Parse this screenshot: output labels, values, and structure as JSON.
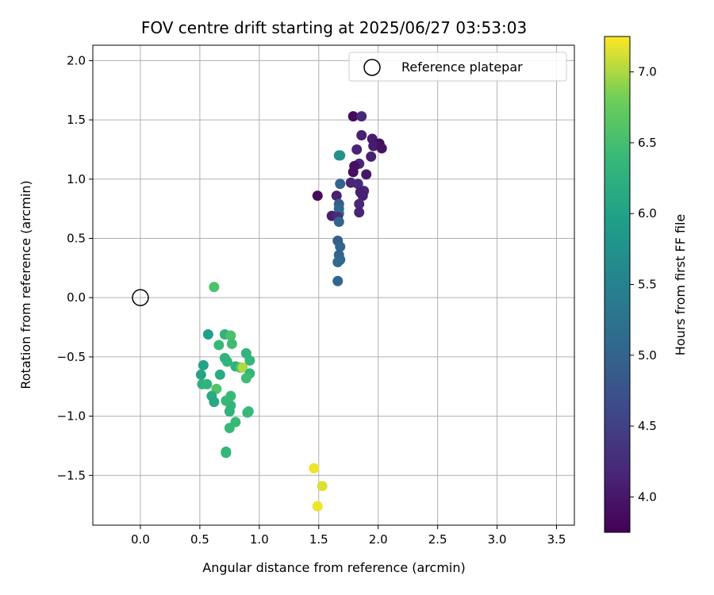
{
  "chart_data": {
    "type": "scatter",
    "title": "FOV centre drift starting at 2025/06/27 03:53:03",
    "xlabel": "Angular distance from reference (arcmin)",
    "ylabel": "Rotation from reference (arcmin)",
    "xlim": [
      -0.4,
      3.65
    ],
    "ylim": [
      -1.92,
      2.13
    ],
    "xticks": [
      0.0,
      0.5,
      1.0,
      1.5,
      2.0,
      2.5,
      3.0,
      3.5
    ],
    "yticks": [
      -1.5,
      -1.0,
      -0.5,
      0.0,
      0.5,
      1.0,
      1.5,
      2.0
    ],
    "xtick_labels": [
      "0.0",
      "0.5",
      "1.0",
      "1.5",
      "2.0",
      "2.5",
      "3.0",
      "3.5"
    ],
    "ytick_labels": [
      "−1.5",
      "−1.0",
      "−0.5",
      "0.0",
      "0.5",
      "1.0",
      "1.5",
      "2.0"
    ],
    "grid": true,
    "legend": {
      "position": "top-right",
      "entries": [
        "Reference platepar"
      ]
    },
    "reference_point": {
      "x": 0.0,
      "y": 0.0
    },
    "colorbar": {
      "label": "Hours from first FF file",
      "colormap": "viridis",
      "range": [
        3.75,
        7.25
      ],
      "ticks": [
        4.0,
        4.5,
        5.0,
        5.5,
        6.0,
        6.5,
        7.0
      ],
      "tick_labels": [
        "4.0",
        "4.5",
        "5.0",
        "5.5",
        "6.0",
        "6.5",
        "7.0"
      ]
    },
    "points": [
      {
        "x": 1.79,
        "y": 1.53,
        "h": 3.85
      },
      {
        "x": 1.86,
        "y": 1.53,
        "h": 4.2
      },
      {
        "x": 1.86,
        "y": 1.37,
        "h": 4.1
      },
      {
        "x": 1.95,
        "y": 1.34,
        "h": 4.05
      },
      {
        "x": 2.01,
        "y": 1.3,
        "h": 3.9
      },
      {
        "x": 1.96,
        "y": 1.28,
        "h": 4.05
      },
      {
        "x": 2.03,
        "y": 1.26,
        "h": 3.95
      },
      {
        "x": 1.82,
        "y": 1.25,
        "h": 4.15
      },
      {
        "x": 1.94,
        "y": 1.19,
        "h": 4.1
      },
      {
        "x": 1.84,
        "y": 1.13,
        "h": 4.2
      },
      {
        "x": 1.8,
        "y": 1.11,
        "h": 3.9
      },
      {
        "x": 1.79,
        "y": 1.06,
        "h": 3.9
      },
      {
        "x": 1.9,
        "y": 1.04,
        "h": 4.0
      },
      {
        "x": 1.77,
        "y": 0.97,
        "h": 4.15
      },
      {
        "x": 1.83,
        "y": 0.96,
        "h": 4.2
      },
      {
        "x": 1.68,
        "y": 0.96,
        "h": 5.0
      },
      {
        "x": 1.88,
        "y": 0.9,
        "h": 4.15
      },
      {
        "x": 1.85,
        "y": 0.89,
        "h": 4.1
      },
      {
        "x": 1.87,
        "y": 0.86,
        "h": 4.1
      },
      {
        "x": 1.49,
        "y": 0.86,
        "h": 3.85
      },
      {
        "x": 1.65,
        "y": 0.86,
        "h": 4.1
      },
      {
        "x": 1.67,
        "y": 0.79,
        "h": 4.9
      },
      {
        "x": 1.84,
        "y": 0.79,
        "h": 4.2
      },
      {
        "x": 1.67,
        "y": 0.75,
        "h": 5.05
      },
      {
        "x": 1.84,
        "y": 0.72,
        "h": 4.15
      },
      {
        "x": 1.67,
        "y": 0.71,
        "h": 5.1
      },
      {
        "x": 1.61,
        "y": 0.69,
        "h": 4.1
      },
      {
        "x": 1.66,
        "y": 0.68,
        "h": 4.25
      },
      {
        "x": 1.67,
        "y": 0.64,
        "h": 5.0
      },
      {
        "x": 1.66,
        "y": 0.48,
        "h": 4.9
      },
      {
        "x": 1.68,
        "y": 0.43,
        "h": 5.0
      },
      {
        "x": 1.67,
        "y": 0.36,
        "h": 5.0
      },
      {
        "x": 1.68,
        "y": 0.32,
        "h": 5.05
      },
      {
        "x": 1.66,
        "y": 0.3,
        "h": 5.1
      },
      {
        "x": 1.66,
        "y": 0.14,
        "h": 5.05
      },
      {
        "x": 1.67,
        "y": 1.2,
        "h": 5.7
      },
      {
        "x": 1.68,
        "y": 1.2,
        "h": 5.75
      },
      {
        "x": 0.62,
        "y": 0.09,
        "h": 6.55
      },
      {
        "x": 0.57,
        "y": -0.31,
        "h": 5.95
      },
      {
        "x": 0.71,
        "y": -0.31,
        "h": 6.3
      },
      {
        "x": 0.76,
        "y": -0.32,
        "h": 6.55
      },
      {
        "x": 0.66,
        "y": -0.4,
        "h": 6.4
      },
      {
        "x": 0.77,
        "y": -0.39,
        "h": 6.45
      },
      {
        "x": 0.89,
        "y": -0.47,
        "h": 6.3
      },
      {
        "x": 0.71,
        "y": -0.51,
        "h": 6.3
      },
      {
        "x": 0.73,
        "y": -0.54,
        "h": 6.3
      },
      {
        "x": 0.92,
        "y": -0.53,
        "h": 6.35
      },
      {
        "x": 0.53,
        "y": -0.57,
        "h": 6.0
      },
      {
        "x": 0.8,
        "y": -0.58,
        "h": 6.25
      },
      {
        "x": 0.84,
        "y": -0.59,
        "h": 6.5
      },
      {
        "x": 0.86,
        "y": -0.59,
        "h": 7.0
      },
      {
        "x": 0.92,
        "y": -0.64,
        "h": 6.35
      },
      {
        "x": 0.51,
        "y": -0.65,
        "h": 6.05
      },
      {
        "x": 0.67,
        "y": -0.65,
        "h": 6.15
      },
      {
        "x": 0.89,
        "y": -0.68,
        "h": 6.45
      },
      {
        "x": 0.52,
        "y": -0.73,
        "h": 6.25
      },
      {
        "x": 0.56,
        "y": -0.73,
        "h": 6.3
      },
      {
        "x": 0.64,
        "y": -0.77,
        "h": 6.6
      },
      {
        "x": 0.6,
        "y": -0.83,
        "h": 6.15
      },
      {
        "x": 0.76,
        "y": -0.83,
        "h": 6.4
      },
      {
        "x": 0.62,
        "y": -0.88,
        "h": 6.1
      },
      {
        "x": 0.72,
        "y": -0.87,
        "h": 6.4
      },
      {
        "x": 0.76,
        "y": -0.91,
        "h": 6.35
      },
      {
        "x": 0.75,
        "y": -0.96,
        "h": 6.3
      },
      {
        "x": 0.91,
        "y": -0.96,
        "h": 6.4
      },
      {
        "x": 0.9,
        "y": -0.97,
        "h": 6.4
      },
      {
        "x": 0.8,
        "y": -1.05,
        "h": 6.4
      },
      {
        "x": 0.75,
        "y": -1.1,
        "h": 6.4
      },
      {
        "x": 0.72,
        "y": -1.3,
        "h": 6.35
      },
      {
        "x": 0.72,
        "y": -1.31,
        "h": 6.35
      },
      {
        "x": 1.46,
        "y": -1.44,
        "h": 7.2
      },
      {
        "x": 1.53,
        "y": -1.59,
        "h": 7.15
      },
      {
        "x": 1.49,
        "y": -1.76,
        "h": 7.2
      }
    ]
  }
}
